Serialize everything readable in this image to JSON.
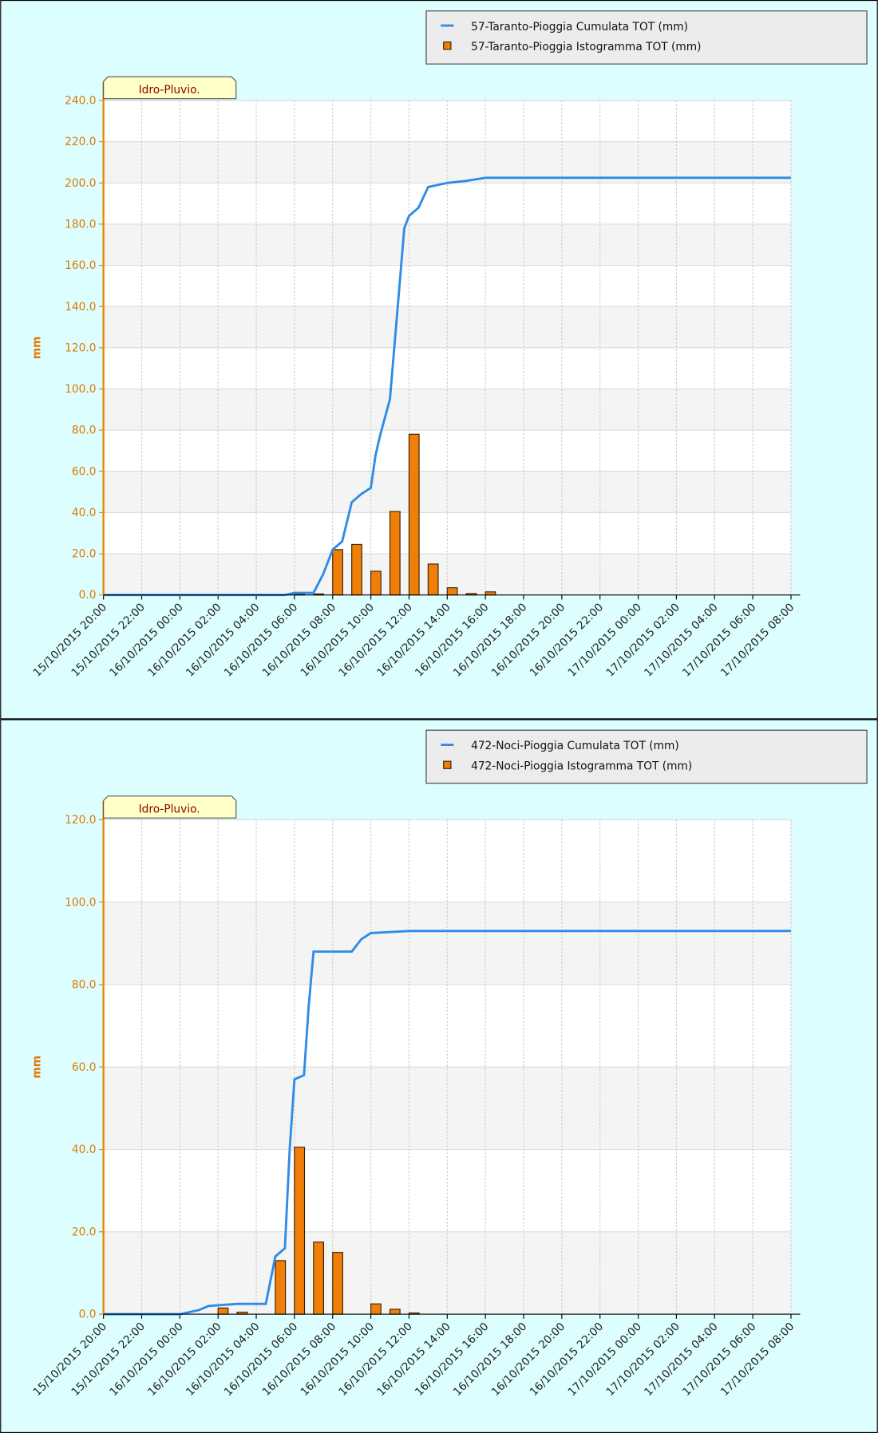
{
  "chart_data": [
    {
      "type": "combo",
      "badge": "Idro-Pluvio.",
      "ylabel": "mm",
      "xlim": [
        "15/10/2015 20:00",
        "17/10/2015 08:00"
      ],
      "xticks": [
        "15/10/2015 20:00",
        "15/10/2015 22:00",
        "16/10/2015 00:00",
        "16/10/2015 02:00",
        "16/10/2015 04:00",
        "16/10/2015 06:00",
        "16/10/2015 08:00",
        "16/10/2015 10:00",
        "16/10/2015 12:00",
        "16/10/2015 14:00",
        "16/10/2015 16:00",
        "16/10/2015 18:00",
        "16/10/2015 20:00",
        "16/10/2015 22:00",
        "17/10/2015 00:00",
        "17/10/2015 02:00",
        "17/10/2015 04:00",
        "17/10/2015 06:00",
        "17/10/2015 08:00"
      ],
      "ylim": [
        0,
        240
      ],
      "yticks": [
        {
          "value": 0,
          "label": "0.0"
        },
        {
          "value": 20,
          "label": "20.0"
        },
        {
          "value": 40,
          "label": "40.0"
        },
        {
          "value": 60,
          "label": "60.0"
        },
        {
          "value": 80,
          "label": "80.0"
        },
        {
          "value": 100,
          "label": "100.0"
        },
        {
          "value": 120,
          "label": "120.0"
        },
        {
          "value": 140,
          "label": "140.0"
        },
        {
          "value": 160,
          "label": "160.0"
        },
        {
          "value": 180,
          "label": "180.0"
        },
        {
          "value": 200,
          "label": "200.0"
        },
        {
          "value": 220,
          "label": "220.0"
        },
        {
          "value": 240,
          "label": "240.0"
        }
      ],
      "grid": true,
      "series": [
        {
          "name": "57-Taranto-Pioggia Cumulata TOT (mm)",
          "type": "line",
          "color": "#2e8be6",
          "x": [
            "15/10/2015 20:00",
            "16/10/2015 05:30",
            "16/10/2015 06:00",
            "16/10/2015 07:00",
            "16/10/2015 07:30",
            "16/10/2015 08:00",
            "16/10/2015 08:30",
            "16/10/2015 09:00",
            "16/10/2015 09:30",
            "16/10/2015 10:00",
            "16/10/2015 10:15",
            "16/10/2015 10:30",
            "16/10/2015 11:00",
            "16/10/2015 11:30",
            "16/10/2015 11:45",
            "16/10/2015 12:00",
            "16/10/2015 12:30",
            "16/10/2015 13:00",
            "16/10/2015 14:00",
            "16/10/2015 15:00",
            "16/10/2015 16:00",
            "17/10/2015 08:00"
          ],
          "values": [
            0,
            0,
            1,
            1,
            10,
            22,
            26,
            45,
            49,
            52,
            68,
            78,
            95,
            150,
            178,
            184,
            188,
            198,
            200,
            201,
            202.5,
            202.5
          ]
        },
        {
          "name": "57-Taranto-Pioggia Istogramma TOT (mm)",
          "type": "bar",
          "color": "#f07f0a",
          "x": [
            "16/10/2015 06:00",
            "16/10/2015 07:00",
            "16/10/2015 08:00",
            "16/10/2015 09:00",
            "16/10/2015 10:00",
            "16/10/2015 11:00",
            "16/10/2015 12:00",
            "16/10/2015 13:00",
            "16/10/2015 14:00",
            "16/10/2015 15:00",
            "16/10/2015 16:00"
          ],
          "values": [
            0.5,
            0.5,
            22,
            24.5,
            11.5,
            40.5,
            78,
            15,
            3.5,
            0.7,
            1.5
          ]
        }
      ]
    },
    {
      "type": "combo",
      "badge": "Idro-Pluvio.",
      "ylabel": "mm",
      "xlim": [
        "15/10/2015 20:00",
        "17/10/2015 08:00"
      ],
      "xticks": [
        "15/10/2015 20:00",
        "15/10/2015 22:00",
        "16/10/2015 00:00",
        "16/10/2015 02:00",
        "16/10/2015 04:00",
        "16/10/2015 06:00",
        "16/10/2015 08:00",
        "16/10/2015 10:00",
        "16/10/2015 12:00",
        "16/10/2015 14:00",
        "16/10/2015 16:00",
        "16/10/2015 18:00",
        "16/10/2015 20:00",
        "16/10/2015 22:00",
        "17/10/2015 00:00",
        "17/10/2015 02:00",
        "17/10/2015 04:00",
        "17/10/2015 06:00",
        "17/10/2015 08:00"
      ],
      "ylim": [
        0,
        120
      ],
      "yticks": [
        {
          "value": 0,
          "label": "0.0"
        },
        {
          "value": 20,
          "label": "20.0"
        },
        {
          "value": 40,
          "label": "40.0"
        },
        {
          "value": 60,
          "label": "60.0"
        },
        {
          "value": 80,
          "label": "80.0"
        },
        {
          "value": 100,
          "label": "100.0"
        },
        {
          "value": 120,
          "label": "120.0"
        }
      ],
      "grid": true,
      "series": [
        {
          "name": "472-Noci-Pioggia Cumulata TOT (mm)",
          "type": "line",
          "color": "#2e8be6",
          "x": [
            "15/10/2015 20:00",
            "16/10/2015 00:00",
            "16/10/2015 00:30",
            "16/10/2015 01:00",
            "16/10/2015 01:30",
            "16/10/2015 03:00",
            "16/10/2015 04:30",
            "16/10/2015 05:00",
            "16/10/2015 05:30",
            "16/10/2015 05:45",
            "16/10/2015 06:00",
            "16/10/2015 06:30",
            "16/10/2015 06:45",
            "16/10/2015 07:00",
            "16/10/2015 09:00",
            "16/10/2015 09:30",
            "16/10/2015 10:00",
            "16/10/2015 12:00",
            "17/10/2015 08:00"
          ],
          "values": [
            0,
            0,
            0.5,
            1,
            2,
            2.5,
            2.5,
            14,
            16,
            40,
            57,
            58,
            75,
            88,
            88,
            91,
            92.5,
            93,
            93
          ]
        },
        {
          "name": "472-Noci-Pioggia Istogramma TOT (mm)",
          "type": "bar",
          "color": "#f07f0a",
          "x": [
            "16/10/2015 02:00",
            "16/10/2015 03:00",
            "16/10/2015 05:00",
            "16/10/2015 06:00",
            "16/10/2015 07:00",
            "16/10/2015 08:00",
            "16/10/2015 10:00",
            "16/10/2015 11:00",
            "16/10/2015 12:00"
          ],
          "values": [
            1.5,
            0.5,
            13,
            40.5,
            17.5,
            15,
            2.5,
            1.2,
            0.3
          ]
        }
      ]
    }
  ]
}
